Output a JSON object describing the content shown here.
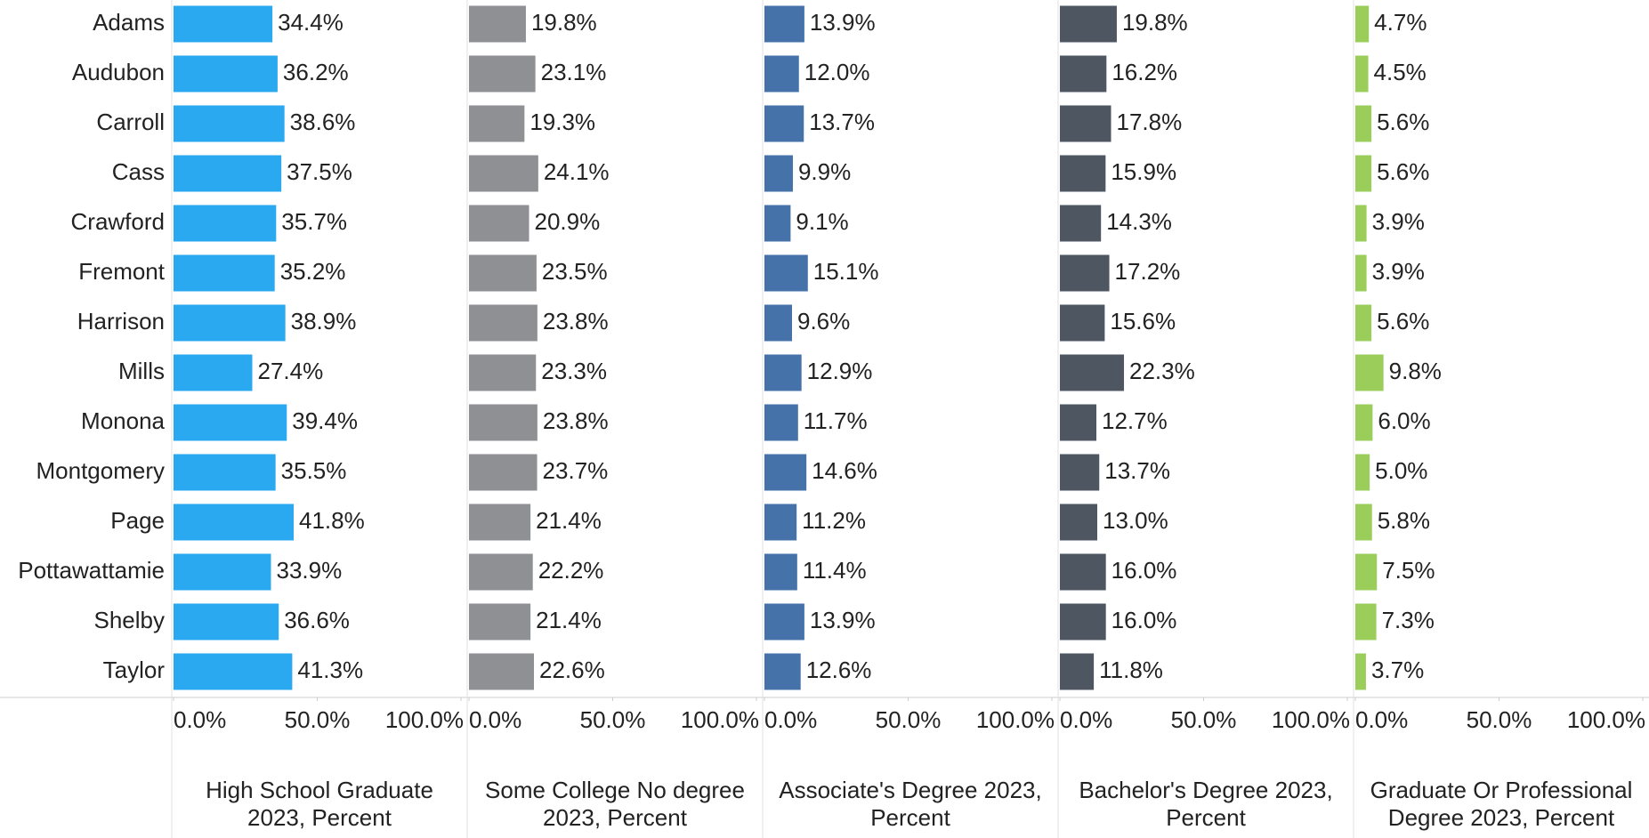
{
  "chart_data": {
    "type": "bar",
    "categories": [
      "Adams",
      "Audubon",
      "Carroll",
      "Cass",
      "Crawford",
      "Fremont",
      "Harrison",
      "Mills",
      "Monona",
      "Montgomery",
      "Page",
      "Pottawattamie",
      "Shelby",
      "Taylor"
    ],
    "series": [
      {
        "name": "High School Graduate 2023, Percent",
        "color": "#2aa9f1",
        "values": [
          34.4,
          36.2,
          38.6,
          37.5,
          35.7,
          35.2,
          38.9,
          27.4,
          39.4,
          35.5,
          41.8,
          33.9,
          36.6,
          41.3
        ],
        "value_labels": [
          "34.4%",
          "36.2%",
          "38.6%",
          "37.5%",
          "35.7%",
          "35.2%",
          "38.9%",
          "27.4%",
          "39.4%",
          "35.5%",
          "41.8%",
          "33.9%",
          "36.6%",
          "41.3%"
        ]
      },
      {
        "name": "Some College No degree 2023, Percent",
        "color": "#8e9093",
        "values": [
          19.8,
          23.1,
          19.3,
          24.1,
          20.9,
          23.5,
          23.8,
          23.3,
          23.8,
          23.7,
          21.4,
          22.2,
          21.4,
          22.6
        ],
        "value_labels": [
          "19.8%",
          "23.1%",
          "19.3%",
          "24.1%",
          "20.9%",
          "23.5%",
          "23.8%",
          "23.3%",
          "23.8%",
          "23.7%",
          "21.4%",
          "22.2%",
          "21.4%",
          "22.6%"
        ]
      },
      {
        "name": "Associate's Degree 2023, Percent",
        "color": "#4472a9",
        "values": [
          13.9,
          12.0,
          13.7,
          9.9,
          9.1,
          15.1,
          9.6,
          12.9,
          11.7,
          14.6,
          11.2,
          11.4,
          13.9,
          12.6
        ],
        "value_labels": [
          "13.9%",
          "12.0%",
          "13.7%",
          "9.9%",
          "9.1%",
          "15.1%",
          "9.6%",
          "12.9%",
          "11.7%",
          "14.6%",
          "11.2%",
          "11.4%",
          "13.9%",
          "12.6%"
        ]
      },
      {
        "name": "Bachelor's Degree 2023, Percent",
        "color": "#4d5661",
        "values": [
          19.8,
          16.2,
          17.8,
          15.9,
          14.3,
          17.2,
          15.6,
          22.3,
          12.7,
          13.7,
          13.0,
          16.0,
          16.0,
          11.8
        ],
        "value_labels": [
          "19.8%",
          "16.2%",
          "17.8%",
          "15.9%",
          "14.3%",
          "17.2%",
          "15.6%",
          "22.3%",
          "12.7%",
          "13.7%",
          "13.0%",
          "16.0%",
          "16.0%",
          "11.8%"
        ]
      },
      {
        "name": "Graduate Or Professional Degree 2023, Percent",
        "color": "#9bcd5b",
        "values": [
          4.7,
          4.5,
          5.6,
          5.6,
          3.9,
          3.9,
          5.6,
          9.8,
          6.0,
          5.0,
          5.8,
          7.5,
          7.3,
          3.7
        ],
        "value_labels": [
          "4.7%",
          "4.5%",
          "5.6%",
          "5.6%",
          "3.9%",
          "3.9%",
          "5.6%",
          "9.8%",
          "6.0%",
          "5.0%",
          "5.8%",
          "7.5%",
          "7.3%",
          "3.7%"
        ]
      }
    ],
    "xlim": [
      0,
      100
    ],
    "xticks": [
      {
        "value": 0,
        "label": "0.0%"
      },
      {
        "value": 50,
        "label": "50.0%"
      },
      {
        "value": 100,
        "label": "100.0%"
      }
    ]
  }
}
